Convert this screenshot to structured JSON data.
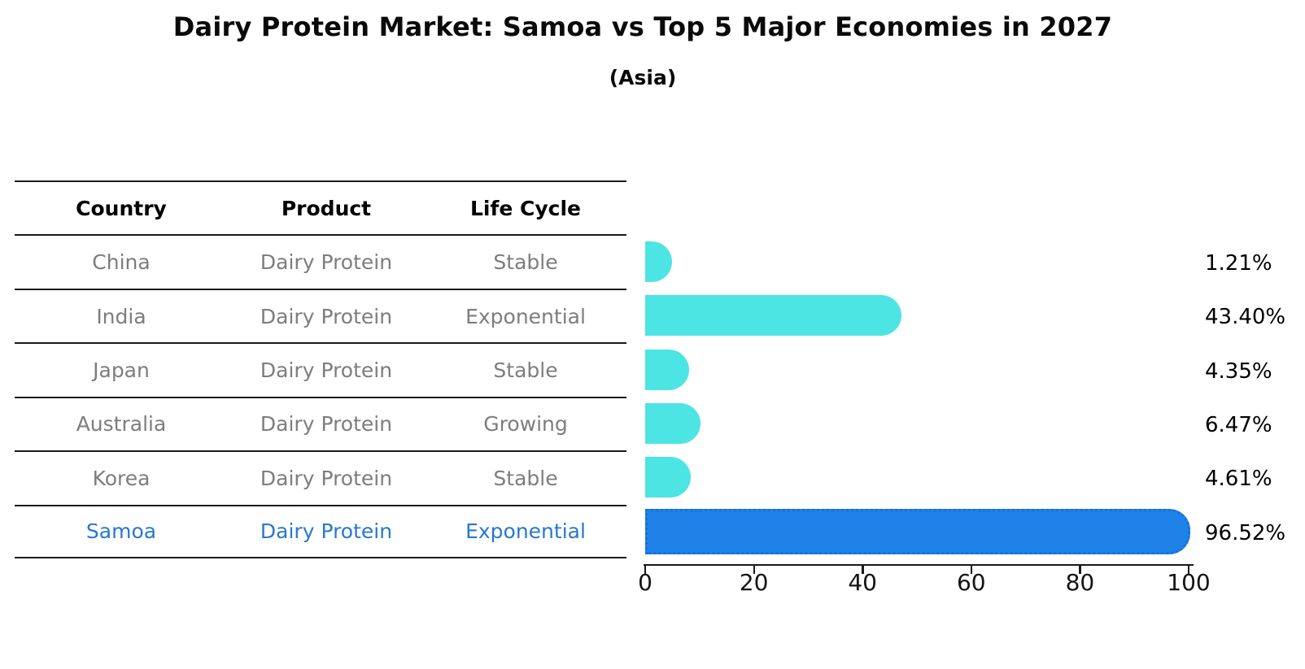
{
  "table": {
    "headers": [
      "Country",
      "Product",
      "Life Cycle"
    ],
    "rows": [
      {
        "country": "China",
        "product": "Dairy Protein",
        "life_cycle": "Stable",
        "highlighted": false
      },
      {
        "country": "India",
        "product": "Dairy Protein",
        "life_cycle": "Exponential",
        "highlighted": false
      },
      {
        "country": "Japan",
        "product": "Dairy Protein",
        "life_cycle": "Stable",
        "highlighted": false
      },
      {
        "country": "Australia",
        "product": "Dairy Protein",
        "life_cycle": "Growing",
        "highlighted": false
      },
      {
        "country": "Korea",
        "product": "Dairy Protein",
        "life_cycle": "Stable",
        "highlighted": false
      },
      {
        "country": "Samoa",
        "product": "Dairy Protein",
        "life_cycle": "Exponential",
        "highlighted": true
      }
    ]
  },
  "chart_data": {
    "type": "bar",
    "orientation": "horizontal",
    "title": "Dairy Protein Market: Samoa vs Top 5 Major Economies in 2027",
    "subtitle": "(Asia)",
    "categories": [
      "China",
      "India",
      "Japan",
      "Australia",
      "Korea",
      "Samoa"
    ],
    "values": [
      1.21,
      43.4,
      4.35,
      6.47,
      4.61,
      96.52
    ],
    "value_labels": [
      "1.21%",
      "43.40%",
      "4.35%",
      "6.47%",
      "4.61%",
      "96.52%"
    ],
    "highlight_index": 5,
    "xlabel": "",
    "ylabel": "",
    "xlim": [
      0,
      100
    ],
    "x_ticks": [
      0,
      20,
      40,
      60,
      80,
      100
    ],
    "grid": false,
    "legend": false,
    "colors": {
      "bar_default": "#4de4e4",
      "bar_highlight": "#1e82e8",
      "bar_highlight_edge": "#1a6fd6",
      "highlight_text": "#2878ce",
      "row_text": "#7d7d7d",
      "header_text": "#000000"
    }
  }
}
